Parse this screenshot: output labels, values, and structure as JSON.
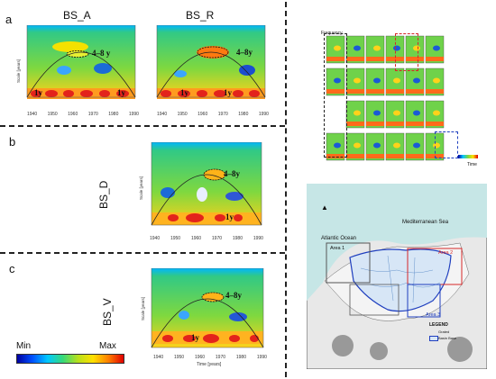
{
  "panels": {
    "a": {
      "letter": "a",
      "titles": [
        "BS_A",
        "BS_R"
      ],
      "band": "4–8 y",
      "band_r": "4–8y",
      "oneyear": "1y"
    },
    "b": {
      "letter": "b",
      "series": "BS_D",
      "band": "4–8y",
      "oneyear": "1y"
    },
    "c": {
      "letter": "c",
      "series": "BS_V",
      "band": "4–8y",
      "oneyear": "1y"
    }
  },
  "axis": {
    "years_a": [
      "1940",
      "1950",
      "1960",
      "1970",
      "1980",
      "1990"
    ],
    "years_b": [
      "1940",
      "1950",
      "1960",
      "1970",
      "1980",
      "1990"
    ],
    "scale_label": "Scale [years]",
    "time_label": "Time [years]",
    "scale_ticks": [
      "16",
      "8",
      "4",
      "2",
      "1"
    ]
  },
  "colorbar": {
    "min": "Min",
    "max": "Max"
  },
  "grid_panel": {
    "frequency_label": "Frequency",
    "time_label": "Time"
  },
  "map": {
    "sea_label": "Mediterranean Sea",
    "ocean_label": "Atlantic Ocean",
    "areas": [
      "Area 1",
      "Area 2",
      "Area 3"
    ],
    "legend_title": "LEGEND",
    "legend_items": [
      "Grated",
      "Basin Base"
    ],
    "colors": {
      "area1": "#555555",
      "area2": "#d62728",
      "area3": "#1f3fbf"
    }
  }
}
